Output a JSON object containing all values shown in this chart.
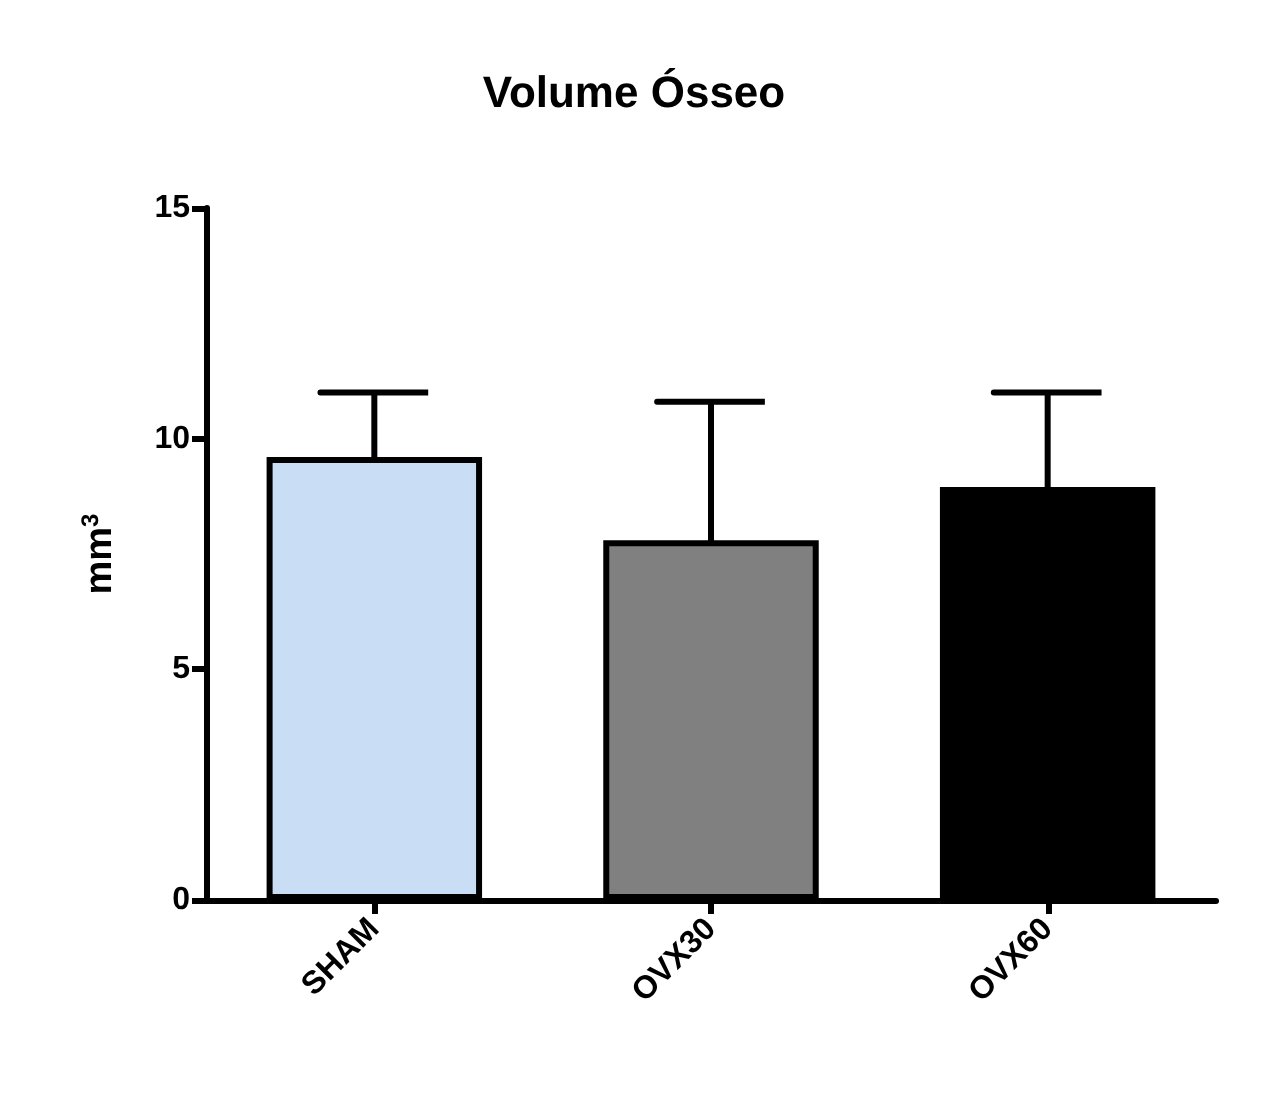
{
  "chart_data": {
    "type": "bar",
    "title": "Volume Ósseo",
    "ylabel": "mm$^{3}$",
    "categories": [
      "SHAM",
      "OVX30",
      "OVX60"
    ],
    "values": [
      9.6,
      7.8,
      8.95
    ],
    "colors": [
      "#c9ddf5",
      "#808080",
      "#000000"
    ],
    "errors": [
      1.4,
      3.0,
      2.05
    ],
    "ylim": [
      0,
      15
    ],
    "yticks": [
      0,
      5,
      10,
      15
    ],
    "grid": false
  }
}
